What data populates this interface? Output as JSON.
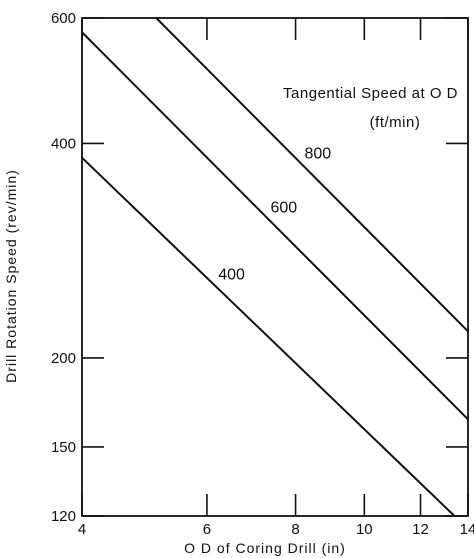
{
  "chart_data": {
    "type": "line",
    "xlabel": "O D of Coring Drill (in)",
    "ylabel": "Drill Rotation Speed (rev/min)",
    "xscale": "log",
    "yscale": "log",
    "xlim": [
      4,
      14
    ],
    "ylim": [
      120,
      600
    ],
    "xticks": [
      4,
      6,
      8,
      10,
      12,
      14
    ],
    "yticks": [
      120,
      150,
      200,
      400,
      600
    ],
    "grid": false,
    "legend": {
      "title": "Tangential Speed at O D",
      "units": "(ft/min)",
      "position": "top-right"
    },
    "series": [
      {
        "name": "800",
        "x": [
          5.09,
          14
        ],
        "y": [
          600,
          218
        ]
      },
      {
        "name": "600",
        "x": [
          4,
          14
        ],
        "y": [
          573,
          164
        ]
      },
      {
        "name": "400",
        "x": [
          4,
          13.4
        ],
        "y": [
          382,
          120
        ]
      }
    ]
  }
}
